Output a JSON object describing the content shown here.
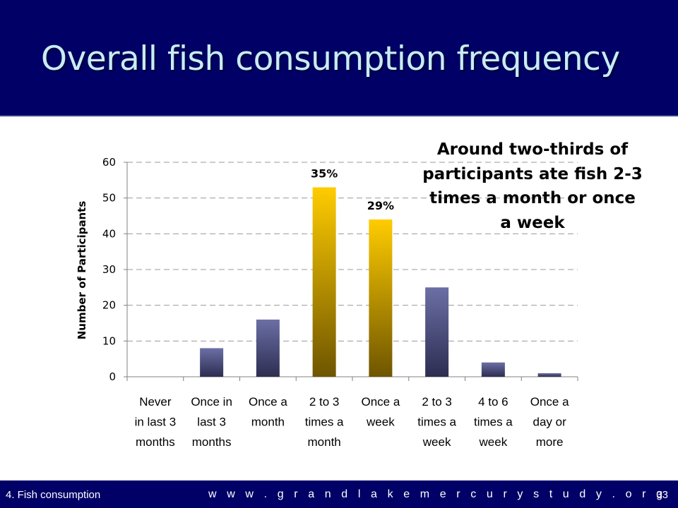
{
  "slide": {
    "title": "Overall fish consumption frequency",
    "callout": "Around two-thirds of participants ate fish 2-3 times a month or once a week"
  },
  "footer": {
    "section": "4. Fish consumption",
    "url": "w w w . g r a n d l a k e m e r c u r y s t u d y . o r g",
    "page_number": "33"
  },
  "colors": {
    "header_bg": "#000066",
    "title_text": "#c7ecf6",
    "bar_standard_top": "#6b6fa4",
    "bar_standard_bottom": "#2d2d52",
    "bar_highlight_top": "#ffcc00",
    "bar_highlight_bottom": "#6e5500"
  },
  "chart_data": {
    "type": "bar",
    "title": "",
    "xlabel": "",
    "ylabel": "Number of Participants",
    "ylim": [
      0,
      60
    ],
    "yticks": [
      "0",
      "10",
      "20",
      "30",
      "40",
      "50",
      "60"
    ],
    "grid": "horizontal dashed",
    "categories": [
      [
        "Never",
        "in last 3",
        "months"
      ],
      [
        "Once in",
        "last 3",
        "months"
      ],
      [
        "Once a",
        "month"
      ],
      [
        "2 to 3",
        "times a",
        "month"
      ],
      [
        "Once a",
        "week"
      ],
      [
        "2 to 3",
        "times a",
        "week"
      ],
      [
        "4 to 6",
        "times a",
        "week"
      ],
      [
        "Once a",
        "day or",
        "more"
      ]
    ],
    "values": [
      0,
      8,
      16,
      53,
      44,
      25,
      4,
      1
    ],
    "highlighted": [
      false,
      false,
      false,
      true,
      true,
      false,
      false,
      false
    ],
    "data_labels": [
      "",
      "",
      "",
      "35%",
      "29%",
      "",
      "",
      ""
    ]
  }
}
